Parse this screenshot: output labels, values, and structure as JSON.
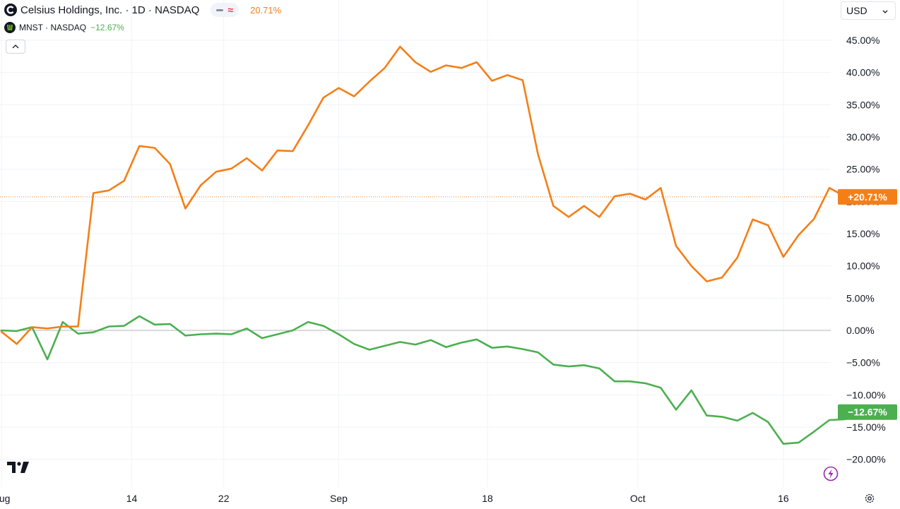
{
  "legend": {
    "main_symbol": "Celsius Holdings, Inc. · 1D · NASDAQ",
    "main_value": "20.71%",
    "compare_symbol": "MNST · NASDAQ",
    "compare_change": "−12.67%"
  },
  "currency": {
    "label": "USD"
  },
  "icons": {
    "main_logo": "celsius-logo-icon",
    "compare_logo": "monster-logo-icon",
    "collapse": "chevron-up-icon",
    "currency_dropdown": "chevron-down-icon",
    "brand": "tradingview-logo-icon",
    "bolt": "lightning-icon",
    "settings": "gear-icon"
  },
  "colors": {
    "celh": "#f57f17",
    "mnst": "#4caf50",
    "grid": "#f0f3fa",
    "zero_line": "#b2b5be",
    "text": "#131722"
  },
  "chart_data": {
    "type": "line",
    "title": "",
    "xlabel": "",
    "ylabel": "",
    "y_unit": "%",
    "ylim": [
      -22,
      50
    ],
    "y_ticks": [
      45,
      40,
      35,
      30,
      25,
      20,
      15,
      10,
      5,
      0,
      -5,
      -10,
      -15,
      -20
    ],
    "y_tick_labels": [
      "45.00%",
      "40.00%",
      "35.00%",
      "30.00%",
      "25.00%",
      "20.00%",
      "15.00%",
      "10.00%",
      "5.00%",
      "0.00%",
      "−5.00%",
      "−10.00%",
      "−15.00%",
      "−20.00%"
    ],
    "x_index_range": [
      0,
      54
    ],
    "x_ticks": [
      {
        "index": 0,
        "label": "Aug"
      },
      {
        "index": 8.5,
        "label": "14"
      },
      {
        "index": 14.5,
        "label": "22"
      },
      {
        "index": 22,
        "label": "Sep"
      },
      {
        "index": 31.7,
        "label": "18"
      },
      {
        "index": 41.5,
        "label": "Oct"
      },
      {
        "index": 51,
        "label": "16"
      }
    ],
    "grid": true,
    "series": [
      {
        "name": "Celsius Holdings, Inc.",
        "color": "#f57f17",
        "last_label": "+20.71%",
        "last_value": 20.71,
        "values": [
          -0.2,
          -2.1,
          0.5,
          0.3,
          0.6,
          0.6,
          21.3,
          21.7,
          23.2,
          28.6,
          28.3,
          25.8,
          18.9,
          22.5,
          24.6,
          25.1,
          26.7,
          24.8,
          27.9,
          27.8,
          31.8,
          36.1,
          37.6,
          36.3,
          38.6,
          40.7,
          44.0,
          41.6,
          40.1,
          41.1,
          40.7,
          41.6,
          38.7,
          39.6,
          38.8,
          27.3,
          19.3,
          17.6,
          19.3,
          17.6,
          20.8,
          21.2,
          20.3,
          22.1,
          13.1,
          10.0,
          7.6,
          8.2,
          11.3,
          17.2,
          16.3,
          11.4,
          14.8,
          17.3,
          22.1,
          20.8,
          20.71
        ]
      },
      {
        "name": "MNST",
        "color": "#4caf50",
        "last_label": "−12.67%",
        "last_value": -12.67,
        "values": [
          0.0,
          -0.1,
          0.5,
          -4.5,
          1.3,
          -0.5,
          -0.3,
          0.6,
          0.7,
          2.2,
          0.9,
          1.0,
          -0.8,
          -0.6,
          -0.5,
          -0.6,
          0.3,
          -1.2,
          -0.6,
          0.0,
          1.3,
          0.7,
          -0.6,
          -2.1,
          -3.0,
          -2.4,
          -1.8,
          -2.2,
          -1.5,
          -2.6,
          -1.9,
          -1.4,
          -2.7,
          -2.5,
          -2.9,
          -3.4,
          -5.3,
          -5.6,
          -5.4,
          -5.9,
          -7.9,
          -7.9,
          -8.2,
          -8.9,
          -12.3,
          -9.3,
          -13.2,
          -13.4,
          -14.0,
          -12.8,
          -14.2,
          -17.6,
          -17.4,
          -15.7,
          -13.9,
          -13.8,
          -12.67
        ]
      }
    ]
  }
}
